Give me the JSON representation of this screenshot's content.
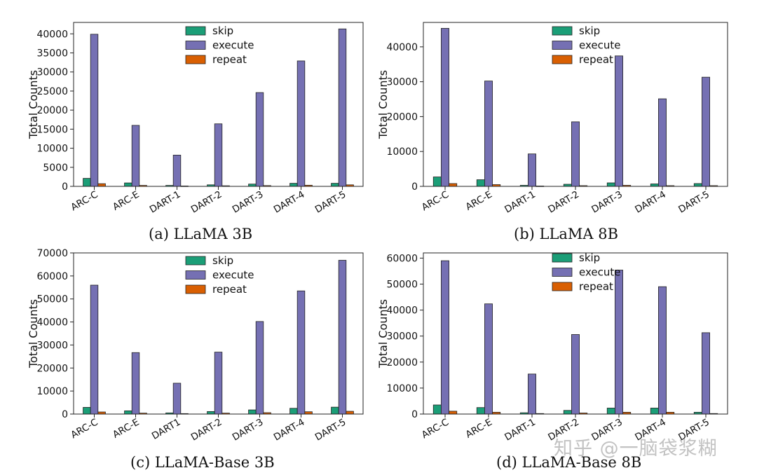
{
  "colors": {
    "skip": "#1b9e77",
    "execute": "#7570b3",
    "repeat": "#d95f02"
  },
  "watermark": "知乎 @一脑袋浆糊",
  "chart_data": [
    {
      "type": "bar",
      "caption": "(a) LLaMA 3B",
      "ylabel": "Total Counts",
      "xlabel": "",
      "ylim": [
        0,
        43000
      ],
      "yticks": [
        0,
        5000,
        10000,
        15000,
        20000,
        25000,
        30000,
        35000,
        40000
      ],
      "categories": [
        "ARC-C",
        "ARC-E",
        "DART-1",
        "DART-2",
        "DART-3",
        "DART-4",
        "DART-5"
      ],
      "legend_position": "top-center",
      "series": [
        {
          "name": "skip",
          "values": [
            2100,
            900,
            250,
            400,
            600,
            800,
            800
          ]
        },
        {
          "name": "execute",
          "values": [
            39900,
            16000,
            8200,
            16400,
            24600,
            32900,
            41300
          ]
        },
        {
          "name": "repeat",
          "values": [
            700,
            250,
            100,
            150,
            200,
            300,
            400
          ]
        }
      ]
    },
    {
      "type": "bar",
      "caption": "(b) LLaMA 8B",
      "ylabel": "Total Counts",
      "xlabel": "",
      "ylim": [
        0,
        47000
      ],
      "yticks": [
        0,
        10000,
        20000,
        30000,
        40000
      ],
      "categories": [
        "ARC-C",
        "ARC-E",
        "DART-1",
        "DART-2",
        "DART-3",
        "DART-4",
        "DART-5"
      ],
      "legend_position": "top-center",
      "series": [
        {
          "name": "skip",
          "values": [
            2700,
            1900,
            300,
            600,
            1000,
            700,
            800
          ]
        },
        {
          "name": "execute",
          "values": [
            45300,
            30200,
            9300,
            18500,
            37400,
            25100,
            31300
          ]
        },
        {
          "name": "repeat",
          "values": [
            800,
            500,
            100,
            200,
            300,
            200,
            200
          ]
        }
      ]
    },
    {
      "type": "bar",
      "caption": "(c) LLaMA-Base 3B",
      "ylabel": "Total Counts",
      "xlabel": "",
      "ylim": [
        0,
        70000
      ],
      "yticks": [
        0,
        10000,
        20000,
        30000,
        40000,
        50000,
        60000,
        70000
      ],
      "categories": [
        "ARC-C",
        "ARC-E",
        "DART1",
        "DART-2",
        "DART-3",
        "DART-4",
        "DART-5"
      ],
      "legend_position": "top-center",
      "series": [
        {
          "name": "skip",
          "values": [
            2900,
            1400,
            500,
            1100,
            1800,
            2500,
            3000
          ]
        },
        {
          "name": "execute",
          "values": [
            56000,
            26700,
            13400,
            26900,
            40200,
            53500,
            66800
          ]
        },
        {
          "name": "repeat",
          "values": [
            900,
            400,
            200,
            400,
            600,
            1000,
            1200
          ]
        }
      ]
    },
    {
      "type": "bar",
      "caption": "(d) LLaMA-Base 8B",
      "ylabel": "Total Counts",
      "xlabel": "",
      "ylim": [
        0,
        62000
      ],
      "yticks": [
        0,
        10000,
        20000,
        30000,
        40000,
        50000,
        60000
      ],
      "categories": [
        "ARC-C",
        "ARC-E",
        "DART-1",
        "DART-2",
        "DART-3",
        "DART-4",
        "DART-5"
      ],
      "legend_position": "top-center",
      "series": [
        {
          "name": "skip",
          "values": [
            3500,
            2500,
            500,
            1400,
            2300,
            2300,
            700
          ]
        },
        {
          "name": "execute",
          "values": [
            59000,
            42400,
            15400,
            30600,
            55400,
            49000,
            31300
          ]
        },
        {
          "name": "repeat",
          "values": [
            1100,
            700,
            200,
            400,
            700,
            700,
            200
          ]
        }
      ]
    }
  ]
}
